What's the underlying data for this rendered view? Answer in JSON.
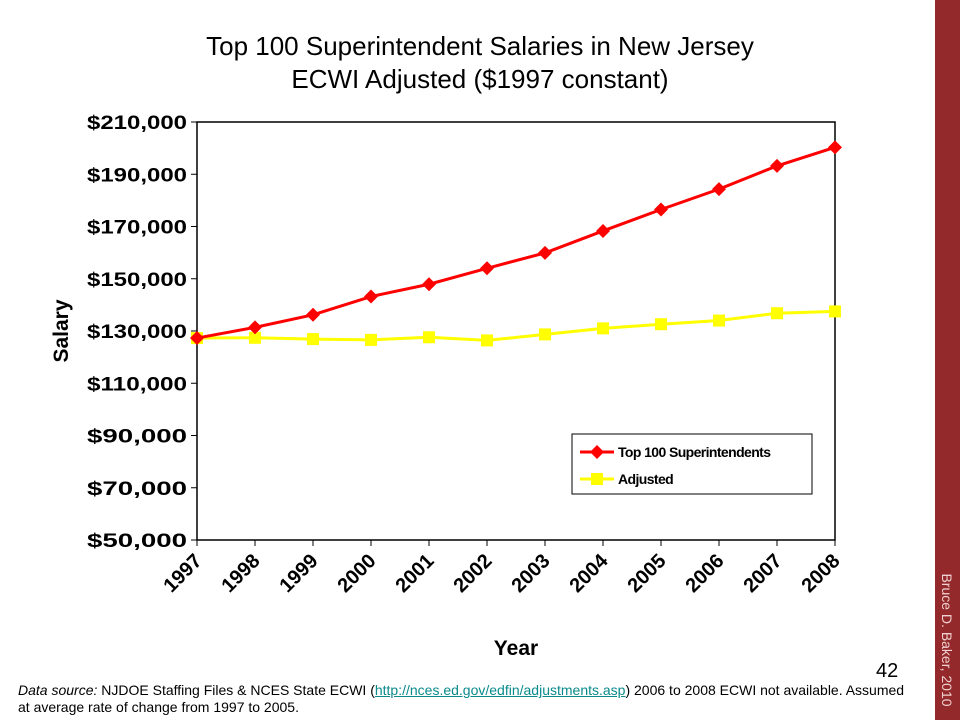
{
  "title_line1": "Top 100 Superintendent Salaries in New Jersey",
  "title_line2": "ECWI Adjusted ($1997 constant)",
  "page_number": "42",
  "author": "Bruce D. Baker, 2010",
  "footer": {
    "italic": "Data source:",
    "text1": " NJDOE Staffing Files & NCES State ECWI (",
    "link": "http://nces.ed.gov/edfin/adjustments.asp",
    "text2": ") 2006 to 2008 ECWI not available. Assumed at average rate of change from 1997 to 2005."
  },
  "colors": {
    "top100": "#ff0000",
    "adjusted": "#ffff00",
    "sidebar": "#93292b"
  },
  "chart_data": {
    "type": "line",
    "title": "Top 100 Superintendent Salaries in New Jersey ECWI Adjusted ($1997 constant)",
    "xlabel": "Year",
    "ylabel": "Salary",
    "x": [
      "1997",
      "1998",
      "1999",
      "2000",
      "2001",
      "2002",
      "2003",
      "2004",
      "2005",
      "2006",
      "2007",
      "2008"
    ],
    "ylim": [
      50000,
      210000
    ],
    "yticks": [
      "$50,000",
      "$70,000",
      "$90,000",
      "$110,000",
      "$130,000",
      "$150,000",
      "$170,000",
      "$190,000",
      "$210,000"
    ],
    "legend_position": "lower-right",
    "series": [
      {
        "name": "Top 100 Superintendents",
        "values": [
          127300,
          131400,
          136200,
          143200,
          147900,
          154000,
          159900,
          168300,
          176500,
          184300,
          193200,
          200300
        ]
      },
      {
        "name": "Adjusted",
        "values": [
          127300,
          127400,
          126900,
          126600,
          127600,
          126400,
          128700,
          131000,
          132600,
          134000,
          136800,
          137500
        ]
      }
    ]
  }
}
